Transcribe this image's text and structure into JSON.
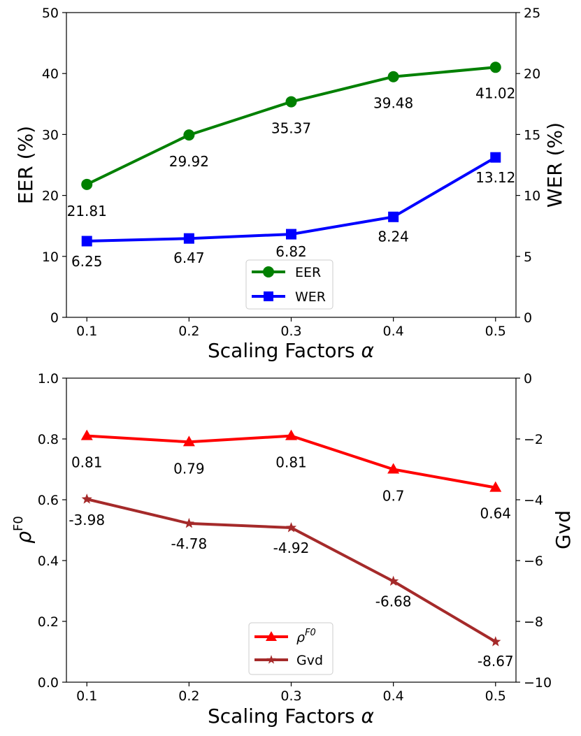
{
  "chart_data": [
    {
      "type": "line",
      "x": [
        0.1,
        0.2,
        0.3,
        0.4,
        0.5
      ],
      "xtick_labels": [
        "0.1",
        "0.2",
        "0.3",
        "0.4",
        "0.5"
      ],
      "xlim": [
        0.08,
        0.52
      ],
      "xlabel_text": "Scaling Factors ",
      "xlabel_symbol": "α",
      "ylabel_left": "EER (%)",
      "ylabel_right": "WER (%)",
      "ylim_left": [
        0,
        50
      ],
      "ylim_right": [
        0,
        25
      ],
      "yticks_left": [
        "0",
        "10",
        "20",
        "30",
        "40",
        "50"
      ],
      "yticks_right": [
        "0",
        "5",
        "10",
        "15",
        "20",
        "25"
      ],
      "legend_position": "bottom-center",
      "series": [
        {
          "name": "EER",
          "axis": "left",
          "color": "#008000",
          "marker": "circle",
          "values": [
            21.81,
            29.92,
            35.37,
            39.48,
            41.02
          ],
          "labels": [
            "21.81",
            "29.92",
            "35.37",
            "39.48",
            "41.02"
          ]
        },
        {
          "name": "WER",
          "axis": "right",
          "color": "#0000ff",
          "marker": "square",
          "values": [
            6.25,
            6.47,
            6.82,
            8.24,
            13.12
          ],
          "labels": [
            "6.25",
            "6.47",
            "6.82",
            "8.24",
            "13.12"
          ]
        }
      ]
    },
    {
      "type": "line",
      "x": [
        0.1,
        0.2,
        0.3,
        0.4,
        0.5
      ],
      "xtick_labels": [
        "0.1",
        "0.2",
        "0.3",
        "0.4",
        "0.5"
      ],
      "xlim": [
        0.08,
        0.52
      ],
      "xlabel_text": "Scaling Factors ",
      "xlabel_symbol": "α",
      "ylabel_left_base": "ρ",
      "ylabel_left_sup": "F0",
      "ylabel_right": "Gvd",
      "ylim_left": [
        0,
        1
      ],
      "ylim_right": [
        -10,
        0
      ],
      "yticks_left": [
        "0.0",
        "0.2",
        "0.4",
        "0.6",
        "0.8",
        "1.0"
      ],
      "yticks_right": [
        "−10",
        "−8",
        "−6",
        "−4",
        "−2",
        "0"
      ],
      "legend_position": "bottom-center",
      "series": [
        {
          "name": "ρF0",
          "legend_base": "ρ",
          "legend_sup": "F0",
          "axis": "left",
          "color": "#ff0000",
          "marker": "triangle",
          "values": [
            0.81,
            0.79,
            0.81,
            0.7,
            0.64
          ],
          "labels": [
            "0.81",
            "0.79",
            "0.81",
            "0.7",
            "0.64"
          ]
        },
        {
          "name": "Gvd",
          "axis": "right",
          "color": "#a52a2a",
          "marker": "star",
          "values": [
            -3.98,
            -4.78,
            -4.92,
            -6.68,
            -8.67
          ],
          "labels": [
            "-3.98",
            "-4.78",
            "-4.92",
            "-6.68",
            "-8.67"
          ]
        }
      ]
    }
  ]
}
